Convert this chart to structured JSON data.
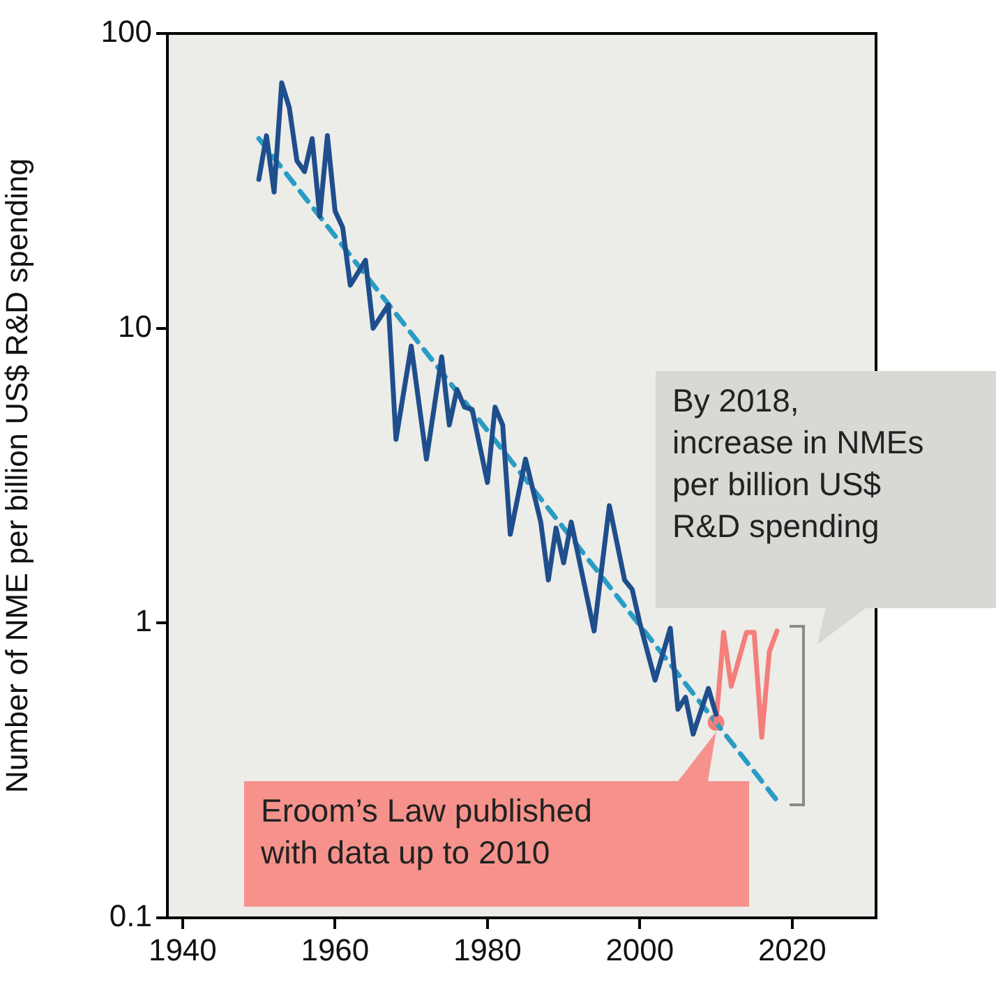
{
  "chart_data": {
    "type": "line",
    "ylabel": "Number of NME per billion US$ R&D spending",
    "log": "y",
    "xlim": [
      1938,
      2031
    ],
    "xticks": [
      1940,
      1960,
      1980,
      2000,
      2020
    ],
    "ylim": [
      0.1,
      100
    ],
    "yticks": [
      0.1,
      1,
      10,
      100
    ],
    "marker": "none",
    "series": [
      {
        "color": "#1f4e8c",
        "x": [
          1950,
          1951,
          1952,
          1953,
          1954,
          1955,
          1956,
          1957,
          1958,
          1959,
          1960,
          1961,
          1962,
          1964,
          1965,
          1967,
          1968,
          1970,
          1972,
          1974,
          1975,
          1976,
          1977,
          1978,
          1980,
          1981,
          1982,
          1983,
          1985,
          1987,
          1988,
          1989,
          1990,
          1991,
          1994,
          1996,
          1998,
          1999,
          2000,
          2002,
          2004,
          2005,
          2006,
          2007,
          2009,
          2010
        ],
        "values": [
          32,
          45,
          29,
          68,
          56,
          37,
          34,
          44,
          24,
          45,
          25,
          22,
          14,
          17,
          10,
          12,
          4.2,
          8.7,
          3.6,
          8,
          4.7,
          6.2,
          5.4,
          5.3,
          3,
          5.4,
          4.7,
          2,
          3.6,
          2.2,
          1.4,
          2.1,
          1.6,
          2.2,
          0.94,
          2.5,
          1.4,
          1.3,
          1,
          0.64,
          0.96,
          0.51,
          0.56,
          0.42,
          0.6,
          0.49
        ]
      },
      {
        "color": "#f47f7a",
        "x": [
          2010,
          2011,
          2012,
          2014,
          2015,
          2016,
          2017,
          2018
        ],
        "values": [
          0.46,
          0.93,
          0.61,
          0.93,
          0.93,
          0.41,
          0.8,
          0.94
        ]
      },
      {
        "color": "#2a9cc4",
        "line_style": "dashed",
        "x": [
          1950,
          2018
        ],
        "values": [
          44,
          0.25
        ]
      },
      {
        "type": "scatter",
        "marker": "circle",
        "color": "#f47f7a",
        "x": [
          2010
        ],
        "values": [
          0.46
        ]
      }
    ],
    "annotations": [
      "Eroom’s Law published\nwith data up to 2010",
      "By 2018,\nincrease in NMEs\nper billion US$\nR&D spending"
    ]
  }
}
